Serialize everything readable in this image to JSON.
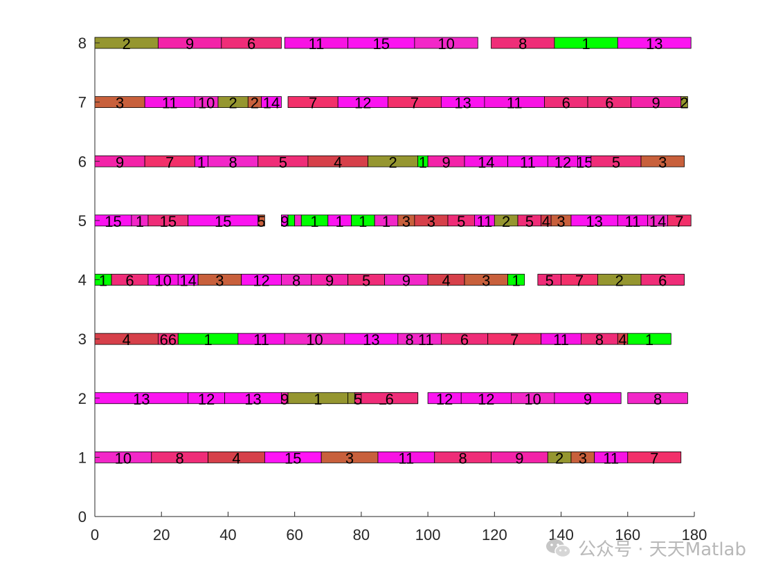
{
  "chart_data": {
    "type": "gantt",
    "xlim": [
      0,
      180
    ],
    "ylim": [
      0,
      8
    ],
    "x_ticks": [
      "0",
      "20",
      "40",
      "60",
      "80",
      "100",
      "120",
      "140",
      "160",
      "180"
    ],
    "y_ticks": [
      "0",
      "1",
      "2",
      "3",
      "4",
      "5",
      "6",
      "7",
      "8"
    ],
    "machines": [
      {
        "y": 1,
        "tasks": [
          {
            "start": 0,
            "end": 17,
            "label": "10",
            "color": "#f227c8"
          },
          {
            "start": 17,
            "end": 34,
            "label": "8",
            "color": "#ef2d78"
          },
          {
            "start": 34,
            "end": 51,
            "label": "4",
            "color": "#d6404a"
          },
          {
            "start": 51,
            "end": 68,
            "label": "15",
            "color": "#ff14f5"
          },
          {
            "start": 68,
            "end": 85,
            "label": "3",
            "color": "#c8603c"
          },
          {
            "start": 85,
            "end": 102,
            "label": "11",
            "color": "#f813e3"
          },
          {
            "start": 102,
            "end": 119,
            "label": "8",
            "color": "#ef2d78"
          },
          {
            "start": 119,
            "end": 136,
            "label": "9",
            "color": "#f323a8"
          },
          {
            "start": 136,
            "end": 143,
            "label": "2",
            "color": "#959630"
          },
          {
            "start": 143,
            "end": 150,
            "label": "3",
            "color": "#c8603c"
          },
          {
            "start": 150,
            "end": 160,
            "label": "11",
            "color": "#f813e3"
          },
          {
            "start": 160,
            "end": 176,
            "label": "7",
            "color": "#f2306a"
          }
        ]
      },
      {
        "y": 2,
        "tasks": [
          {
            "start": 0,
            "end": 28,
            "label": "13",
            "color": "#fb14f0"
          },
          {
            "start": 28,
            "end": 39,
            "label": "12",
            "color": "#fb14f0"
          },
          {
            "start": 39,
            "end": 56,
            "label": "13",
            "color": "#fb14f0"
          },
          {
            "start": 56,
            "end": 58,
            "label": "9",
            "color": "#f323a8"
          },
          {
            "start": 58,
            "end": 76,
            "label": "1",
            "color": "#959630"
          },
          {
            "start": 76,
            "end": 97,
            "label": "2",
            "color": "#959630"
          },
          {
            "start": 78,
            "end": 80,
            "label": "5",
            "color": "#ef2d78"
          },
          {
            "start": 80,
            "end": 97,
            "label": "6",
            "color": "#ef2d78"
          },
          {
            "start": 100,
            "end": 110,
            "label": "12",
            "color": "#fb14f0"
          },
          {
            "start": 110,
            "end": 125,
            "label": "12",
            "color": "#f813e3"
          },
          {
            "start": 125,
            "end": 138,
            "label": "10",
            "color": "#f227c8"
          },
          {
            "start": 138,
            "end": 158,
            "label": "9",
            "color": "#f813e3"
          },
          {
            "start": 160,
            "end": 178,
            "label": "8",
            "color": "#f227c8"
          }
        ]
      },
      {
        "y": 3,
        "tasks": [
          {
            "start": 0,
            "end": 19,
            "label": "4",
            "color": "#d6404a"
          },
          {
            "start": 19,
            "end": 25,
            "label": "66",
            "color": "#ef2d78"
          },
          {
            "start": 25,
            "end": 43,
            "label": "1",
            "color": "#00ff00"
          },
          {
            "start": 43,
            "end": 57,
            "label": "11",
            "color": "#f813e3"
          },
          {
            "start": 57,
            "end": 75,
            "label": "10",
            "color": "#f227c8"
          },
          {
            "start": 75,
            "end": 91,
            "label": "13",
            "color": "#fb14f0"
          },
          {
            "start": 91,
            "end": 104,
            "label": "8 11",
            "color": "#f227c8"
          },
          {
            "start": 104,
            "end": 118,
            "label": "6",
            "color": "#ef2d78"
          },
          {
            "start": 118,
            "end": 134,
            "label": "7",
            "color": "#f2306a"
          },
          {
            "start": 134,
            "end": 146,
            "label": "11",
            "color": "#f813e3"
          },
          {
            "start": 146,
            "end": 157,
            "label": "8",
            "color": "#ef2d78"
          },
          {
            "start": 157,
            "end": 160,
            "label": "4",
            "color": "#d6404a"
          },
          {
            "start": 160,
            "end": 173,
            "label": "1",
            "color": "#00ff00"
          }
        ]
      },
      {
        "y": 4,
        "tasks": [
          {
            "start": 0,
            "end": 5,
            "label": "1",
            "color": "#00ff00"
          },
          {
            "start": 5,
            "end": 16,
            "label": "6",
            "color": "#ef2d78"
          },
          {
            "start": 16,
            "end": 25,
            "label": "10",
            "color": "#f813e3"
          },
          {
            "start": 25,
            "end": 31,
            "label": "14",
            "color": "#fb14f0"
          },
          {
            "start": 31,
            "end": 44,
            "label": "3",
            "color": "#c8603c"
          },
          {
            "start": 44,
            "end": 56,
            "label": "12",
            "color": "#fb14f0"
          },
          {
            "start": 56,
            "end": 65,
            "label": "8",
            "color": "#f227c8"
          },
          {
            "start": 65,
            "end": 76,
            "label": "9",
            "color": "#f323a8"
          },
          {
            "start": 76,
            "end": 87,
            "label": "5",
            "color": "#ef2d78"
          },
          {
            "start": 87,
            "end": 100,
            "label": "9",
            "color": "#f227c8"
          },
          {
            "start": 100,
            "end": 111,
            "label": "4",
            "color": "#d6404a"
          },
          {
            "start": 111,
            "end": 124,
            "label": "3",
            "color": "#c8603c"
          },
          {
            "start": 124,
            "end": 129,
            "label": "1",
            "color": "#00ff00"
          },
          {
            "start": 133,
            "end": 140,
            "label": "5",
            "color": "#ef2d78"
          },
          {
            "start": 140,
            "end": 151,
            "label": "7",
            "color": "#f2306a"
          },
          {
            "start": 151,
            "end": 164,
            "label": "2",
            "color": "#959630"
          },
          {
            "start": 164,
            "end": 177,
            "label": "6",
            "color": "#ef2d78"
          }
        ]
      },
      {
        "y": 5,
        "tasks": [
          {
            "start": 0,
            "end": 11,
            "label": "15",
            "color": "#fb14f0"
          },
          {
            "start": 11,
            "end": 16,
            "label": "1",
            "color": "#f227c8"
          },
          {
            "start": 16,
            "end": 28,
            "label": "15",
            "color": "#ef2d78"
          },
          {
            "start": 28,
            "end": 49,
            "label": "15",
            "color": "#fb14f0"
          },
          {
            "start": 49,
            "end": 51,
            "label": "5",
            "color": "#c8603c"
          },
          {
            "start": 56,
            "end": 58,
            "label": "9",
            "color": "#f813e3"
          },
          {
            "start": 58,
            "end": 60,
            "label": "",
            "color": "#00ff00"
          },
          {
            "start": 60,
            "end": 62,
            "label": "",
            "color": "#f227c8"
          },
          {
            "start": 62,
            "end": 70,
            "label": "1",
            "color": "#00ff00"
          },
          {
            "start": 70,
            "end": 77,
            "label": "1",
            "color": "#fb14f0"
          },
          {
            "start": 77,
            "end": 84,
            "label": "1",
            "color": "#00ff00"
          },
          {
            "start": 84,
            "end": 91,
            "label": "1",
            "color": "#f227c8"
          },
          {
            "start": 91,
            "end": 96,
            "label": "3",
            "color": "#c8603c"
          },
          {
            "start": 96,
            "end": 106,
            "label": "3",
            "color": "#d6404a"
          },
          {
            "start": 106,
            "end": 114,
            "label": "5",
            "color": "#ef2d78"
          },
          {
            "start": 114,
            "end": 120,
            "label": "11",
            "color": "#f813e3"
          },
          {
            "start": 120,
            "end": 127,
            "label": "2",
            "color": "#959630"
          },
          {
            "start": 127,
            "end": 134,
            "label": "5",
            "color": "#ef2d78"
          },
          {
            "start": 134,
            "end": 137,
            "label": "4",
            "color": "#d6404a"
          },
          {
            "start": 137,
            "end": 143,
            "label": "3",
            "color": "#c8603c"
          },
          {
            "start": 143,
            "end": 157,
            "label": "13",
            "color": "#fb14f0"
          },
          {
            "start": 157,
            "end": 166,
            "label": "11",
            "color": "#f813e3"
          },
          {
            "start": 166,
            "end": 172,
            "label": "14",
            "color": "#f227c8"
          },
          {
            "start": 172,
            "end": 179,
            "label": "7",
            "color": "#f2306a"
          }
        ]
      },
      {
        "y": 6,
        "tasks": [
          {
            "start": 0,
            "end": 15,
            "label": "9",
            "color": "#f323a8"
          },
          {
            "start": 15,
            "end": 30,
            "label": "7",
            "color": "#f2306a"
          },
          {
            "start": 30,
            "end": 34,
            "label": "1",
            "color": "#f813e3"
          },
          {
            "start": 34,
            "end": 49,
            "label": "8",
            "color": "#f227c8"
          },
          {
            "start": 49,
            "end": 64,
            "label": "5",
            "color": "#ef2d78"
          },
          {
            "start": 64,
            "end": 82,
            "label": "4",
            "color": "#d6404a"
          },
          {
            "start": 82,
            "end": 97,
            "label": "2",
            "color": "#959630"
          },
          {
            "start": 97,
            "end": 100,
            "label": "1",
            "color": "#00ff00"
          },
          {
            "start": 100,
            "end": 111,
            "label": "9",
            "color": "#f323a8"
          },
          {
            "start": 111,
            "end": 124,
            "label": "14",
            "color": "#f813e3"
          },
          {
            "start": 124,
            "end": 136,
            "label": "11",
            "color": "#fb14f0"
          },
          {
            "start": 136,
            "end": 145,
            "label": "12",
            "color": "#f813e3"
          },
          {
            "start": 145,
            "end": 149,
            "label": "15",
            "color": "#fb14f0"
          },
          {
            "start": 149,
            "end": 164,
            "label": "5",
            "color": "#ef2d78"
          },
          {
            "start": 164,
            "end": 177,
            "label": "3",
            "color": "#c8603c"
          }
        ]
      },
      {
        "y": 7,
        "tasks": [
          {
            "start": 0,
            "end": 15,
            "label": "3",
            "color": "#c8603c"
          },
          {
            "start": 15,
            "end": 30,
            "label": "11",
            "color": "#f813e3"
          },
          {
            "start": 30,
            "end": 37,
            "label": "10",
            "color": "#f227c8"
          },
          {
            "start": 37,
            "end": 46,
            "label": "2",
            "color": "#959630"
          },
          {
            "start": 46,
            "end": 50,
            "label": "2",
            "color": "#c8603c"
          },
          {
            "start": 50,
            "end": 56,
            "label": "14",
            "color": "#fb14f0"
          },
          {
            "start": 58,
            "end": 73,
            "label": "7",
            "color": "#f2306a"
          },
          {
            "start": 73,
            "end": 88,
            "label": "12",
            "color": "#fb14f0"
          },
          {
            "start": 88,
            "end": 104,
            "label": "7",
            "color": "#f2306a"
          },
          {
            "start": 104,
            "end": 117,
            "label": "13",
            "color": "#fb14f0"
          },
          {
            "start": 117,
            "end": 135,
            "label": "11",
            "color": "#f813e3"
          },
          {
            "start": 135,
            "end": 148,
            "label": "6",
            "color": "#ef2d78"
          },
          {
            "start": 148,
            "end": 161,
            "label": "6",
            "color": "#ef2d78"
          },
          {
            "start": 161,
            "end": 176,
            "label": "9",
            "color": "#f323a8"
          },
          {
            "start": 176,
            "end": 178,
            "label": "2",
            "color": "#959630"
          }
        ]
      },
      {
        "y": 8,
        "tasks": [
          {
            "start": 0,
            "end": 19,
            "label": "2",
            "color": "#959630"
          },
          {
            "start": 19,
            "end": 38,
            "label": "9",
            "color": "#f323a8"
          },
          {
            "start": 38,
            "end": 56,
            "label": "6",
            "color": "#ef2d78"
          },
          {
            "start": 57,
            "end": 76,
            "label": "11",
            "color": "#f813e3"
          },
          {
            "start": 76,
            "end": 96,
            "label": "15",
            "color": "#fb14f0"
          },
          {
            "start": 96,
            "end": 115,
            "label": "10",
            "color": "#f227c8"
          },
          {
            "start": 119,
            "end": 138,
            "label": "8",
            "color": "#ef2d78"
          },
          {
            "start": 138,
            "end": 157,
            "label": "1",
            "color": "#00ff00"
          },
          {
            "start": 157,
            "end": 179,
            "label": "13",
            "color": "#fb14f0"
          }
        ]
      }
    ]
  },
  "watermark": {
    "text": "公众号 · 天天Matlab",
    "icon": "wechat-icon"
  }
}
